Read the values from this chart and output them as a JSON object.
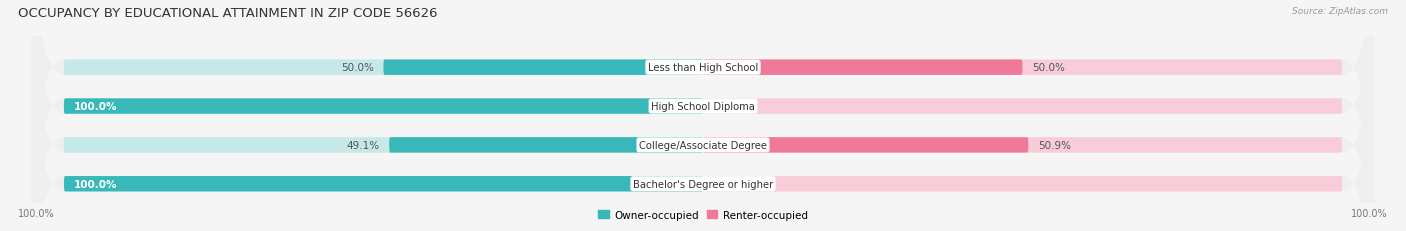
{
  "title": "OCCUPANCY BY EDUCATIONAL ATTAINMENT IN ZIP CODE 56626",
  "source": "Source: ZipAtlas.com",
  "categories": [
    "Less than High School",
    "High School Diploma",
    "College/Associate Degree",
    "Bachelor's Degree or higher"
  ],
  "owner_values": [
    50.0,
    100.0,
    49.1,
    100.0
  ],
  "renter_values": [
    50.0,
    0.0,
    50.9,
    0.0
  ],
  "owner_color": "#38b8b8",
  "renter_color": "#f07898",
  "owner_light": "#c5e8e8",
  "renter_light": "#f8ccd8",
  "row_bg_color": "#efefef",
  "bg_color": "#f5f5f5",
  "white": "#ffffff",
  "title_fontsize": 9.5,
  "label_fontsize": 7.5,
  "source_fontsize": 6.5,
  "tick_fontsize": 7,
  "figsize": [
    14.06,
    2.32
  ],
  "dpi": 100
}
